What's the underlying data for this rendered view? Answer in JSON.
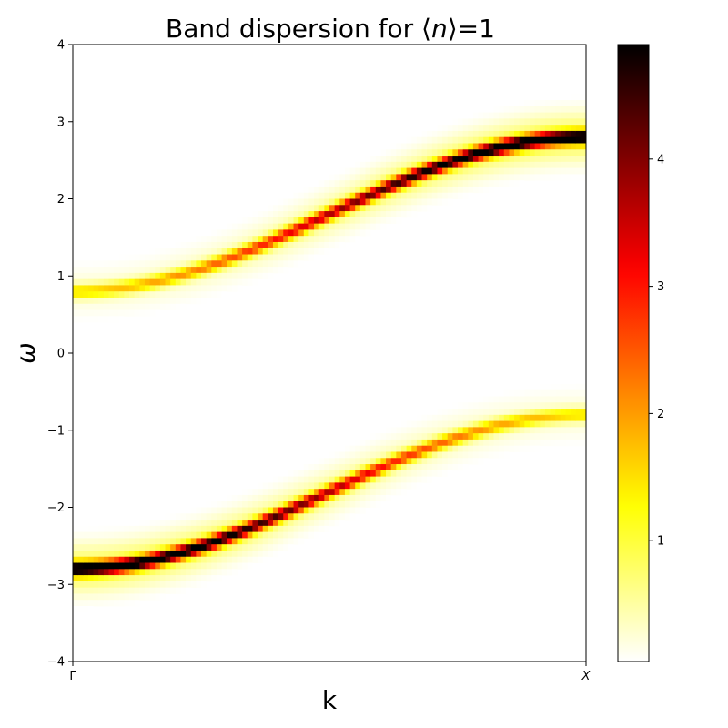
{
  "chart_data": {
    "type": "heatmap",
    "title": {
      "prefix": "Band dispersion for ",
      "open_bracket": "⟨",
      "variable": "n",
      "close_bracket": "⟩",
      "suffix": "=1"
    },
    "xlabel": "k",
    "ylabel": "ω",
    "x_ticks": [
      {
        "label": "Γ",
        "italic": false,
        "k": 0
      },
      {
        "label": "X",
        "italic": true,
        "k": 1
      }
    ],
    "xlim": [
      0,
      1
    ],
    "ylim": [
      -4,
      4
    ],
    "y_ticks": [
      {
        "label": "−4",
        "value": -4
      },
      {
        "label": "−3",
        "value": -3
      },
      {
        "label": "−2",
        "value": -2
      },
      {
        "label": "−1",
        "value": -1
      },
      {
        "label": "0",
        "value": 0
      },
      {
        "label": "1",
        "value": 1
      },
      {
        "label": "2",
        "value": 2
      },
      {
        "label": "3",
        "value": 3
      },
      {
        "label": "4",
        "value": 4
      }
    ],
    "k_points": 100,
    "omega_points": 100,
    "bands": [
      {
        "omega_at_gamma": 0.8,
        "omega_at_x": 2.8
      },
      {
        "omega_at_gamma": -2.8,
        "omega_at_x": -0.8
      }
    ],
    "colormap": "hot_r",
    "colorbar": {
      "min": 0.05,
      "max": 4.9,
      "ticks": [
        {
          "label": "1",
          "value": 1
        },
        {
          "label": "2",
          "value": 2
        },
        {
          "label": "3",
          "value": 3
        },
        {
          "label": "4",
          "value": 4
        }
      ]
    },
    "grid": false
  }
}
